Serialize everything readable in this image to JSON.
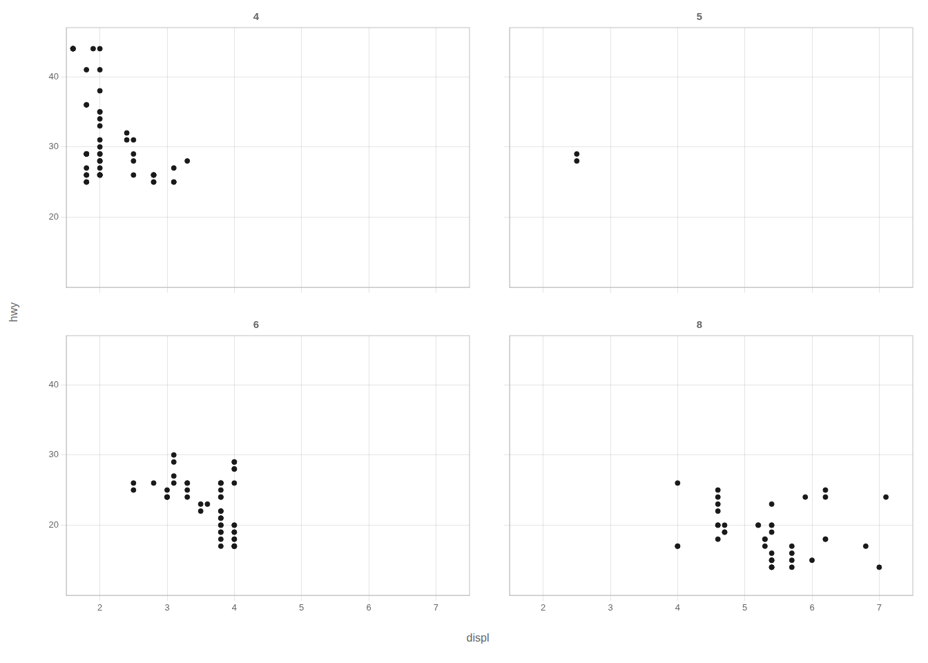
{
  "chart_data": {
    "type": "scatter",
    "xlabel": "displ",
    "ylabel": "hwy",
    "color": "#1A1A1A",
    "grid": true,
    "xlim": [
      1.5,
      7.5
    ],
    "ylim": [
      10,
      47
    ],
    "xticks": [
      2,
      3,
      4,
      5,
      6,
      7
    ],
    "yticks": [
      20,
      30,
      40
    ],
    "series": [
      {
        "name": "4",
        "x": [
          1.8,
          1.8,
          2.0,
          2.0,
          2.8,
          2.8,
          3.1,
          1.8,
          1.8,
          2.0,
          2.0,
          2.8,
          2.8,
          3.1,
          3.1,
          1.8,
          1.8,
          1.8,
          2.0,
          2.0,
          2.0,
          2.0,
          2.8,
          2.8,
          1.9,
          2.0,
          2.0,
          2.0,
          2.0,
          2.5,
          2.5,
          2.8,
          1.6,
          1.8,
          1.8,
          1.8,
          2.0,
          2.4,
          2.4,
          2.5,
          2.5,
          3.3,
          2.0,
          2.0,
          2.0,
          2.0,
          1.6,
          1.6,
          1.6,
          1.6,
          1.6,
          1.8,
          1.8,
          1.8,
          2.0,
          2.0,
          2.0,
          2.0,
          2.0,
          2.0
        ],
        "values": [
          29,
          29,
          31,
          30,
          26,
          26,
          27,
          26,
          25,
          28,
          27,
          25,
          25,
          25,
          25,
          27,
          25,
          26,
          26,
          26,
          26,
          28,
          26,
          26,
          44,
          41,
          38,
          35,
          35,
          28,
          26,
          26,
          44,
          41,
          36,
          36,
          34,
          32,
          31,
          31,
          29,
          28,
          33,
          26,
          26,
          26,
          44,
          44,
          44,
          44,
          44,
          29,
          29,
          29,
          44,
          29,
          26,
          26,
          28,
          29
        ]
      },
      {
        "name": "5",
        "x": [
          2.5,
          2.5
        ],
        "values": [
          28,
          29
        ]
      },
      {
        "name": "6",
        "x": [
          2.8,
          3.1,
          3.1,
          3.1,
          3.1,
          3.8,
          3.8,
          3.8,
          4.0,
          4.0,
          4.0,
          4.0,
          2.5,
          2.5,
          3.3,
          3.3,
          3.8,
          3.8,
          3.8,
          3.8,
          3.8,
          3.8,
          4.0,
          4.0,
          3.0,
          3.0,
          3.6,
          4.0,
          3.3,
          3.3,
          3.8,
          3.8,
          3.8,
          3.8,
          4.0,
          4.0,
          4.0,
          4.0,
          3.0,
          3.0,
          3.5,
          3.5,
          3.8,
          3.8,
          3.8,
          4.0,
          4.0,
          4.0,
          4.0
        ],
        "values": [
          26,
          27,
          30,
          29,
          26,
          24,
          24,
          22,
          20,
          19,
          20,
          17,
          25,
          26,
          26,
          24,
          21,
          22,
          18,
          20,
          20,
          17,
          19,
          18,
          24,
          25,
          23,
          26,
          25,
          26,
          26,
          26,
          26,
          25,
          29,
          29,
          28,
          28,
          24,
          24,
          23,
          22,
          21,
          19,
          19,
          17,
          17,
          18,
          17
        ]
      },
      {
        "name": "8",
        "x": [
          4.6,
          5.4,
          5.4,
          5.4,
          5.4,
          5.4,
          5.4,
          5.4,
          5.3,
          5.3,
          5.3,
          5.7,
          6.0,
          5.7,
          5.7,
          6.2,
          6.2,
          7.0,
          4.7,
          4.7,
          4.7,
          5.2,
          5.2,
          5.7,
          5.9,
          4.6,
          5.4,
          5.4,
          4.0,
          4.0,
          4.6,
          5.4,
          5.4,
          6.8,
          6.2,
          6.2,
          7.1,
          4.0,
          4.6,
          4.6,
          4.6,
          4.6
        ],
        "values": [
          20,
          16,
          15,
          15,
          15,
          14,
          14,
          14,
          17,
          18,
          18,
          14,
          15,
          16,
          15,
          18,
          18,
          14,
          19,
          20,
          19,
          20,
          20,
          17,
          24,
          23,
          23,
          19,
          17,
          17,
          18,
          20,
          20,
          17,
          24,
          25,
          24,
          26,
          25,
          24,
          22,
          20
        ]
      }
    ]
  }
}
